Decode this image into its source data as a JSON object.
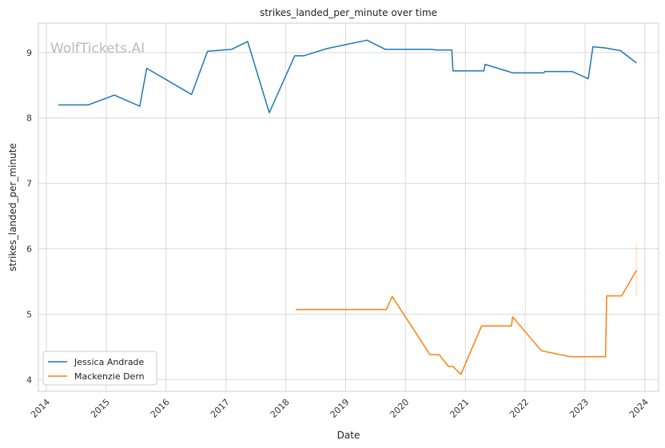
{
  "chart_data": {
    "type": "line",
    "title": "strikes_landed_per_minute over time",
    "xlabel": "Date",
    "ylabel": "strikes_landed_per_minute",
    "watermark": "WolfTickets.AI",
    "x_ticks": [
      "2014",
      "2015",
      "2016",
      "2017",
      "2018",
      "2019",
      "2020",
      "2021",
      "2022",
      "2023",
      "2024"
    ],
    "y_ticks": [
      "4",
      "5",
      "6",
      "7",
      "8",
      "9"
    ],
    "xlim": [
      "2013-11-13",
      "2024-03-25"
    ],
    "ylim": [
      3.82,
      9.45
    ],
    "grid": true,
    "legend_position": "lower-left",
    "colors": {
      "Jessica Andrade": "#1f77b4",
      "Mackenzie Dern": "#ff7f0e",
      "grid": "#d9d9d9",
      "axes_edge": "#cccccc"
    },
    "series": [
      {
        "name": "Jessica Andrade",
        "x": [
          "2014-03-15",
          "2014-09-13",
          "2015-02-20",
          "2015-07-25",
          "2015-09-05",
          "2016-06-05",
          "2016-09-10",
          "2017-02-04",
          "2017-05-13",
          "2017-09-22",
          "2018-02-24",
          "2018-04-21",
          "2018-09-08",
          "2019-05-11",
          "2019-08-31",
          "2020-06-01",
          "2020-07-12",
          "2020-10-10",
          "2020-10-17",
          "2021-04-24",
          "2021-05-01",
          "2021-10-16",
          "2022-04-23",
          "2022-04-30",
          "2022-10-15",
          "2023-01-21",
          "2023-02-18",
          "2023-05-06",
          "2023-08-05",
          "2023-11-11"
        ],
        "values": [
          8.2,
          8.2,
          8.35,
          8.18,
          8.76,
          8.36,
          9.02,
          9.05,
          9.17,
          8.08,
          8.95,
          8.95,
          9.06,
          9.19,
          9.05,
          9.05,
          9.04,
          9.04,
          8.72,
          8.72,
          8.82,
          8.69,
          8.69,
          8.71,
          8.71,
          8.6,
          9.09,
          9.07,
          9.03,
          8.84
        ]
      },
      {
        "name": "Mackenzie Dern",
        "x": [
          "2018-03-03",
          "2019-09-07",
          "2019-10-12",
          "2020-05-30",
          "2020-07-25",
          "2020-09-19",
          "2020-10-17",
          "2020-12-05",
          "2021-04-10",
          "2021-10-09",
          "2021-10-16",
          "2022-04-09",
          "2022-10-01",
          "2023-05-06",
          "2023-05-13",
          "2023-08-12",
          "2023-11-11"
        ],
        "values": [
          5.07,
          5.07,
          5.27,
          4.38,
          4.38,
          4.2,
          4.2,
          4.08,
          4.82,
          4.82,
          4.96,
          4.44,
          4.35,
          4.35,
          5.28,
          5.28,
          5.67
        ]
      }
    ],
    "error_band": {
      "series": "Mackenzie Dern",
      "x": "2023-11-11",
      "low": 5.27,
      "high": 6.07
    }
  }
}
